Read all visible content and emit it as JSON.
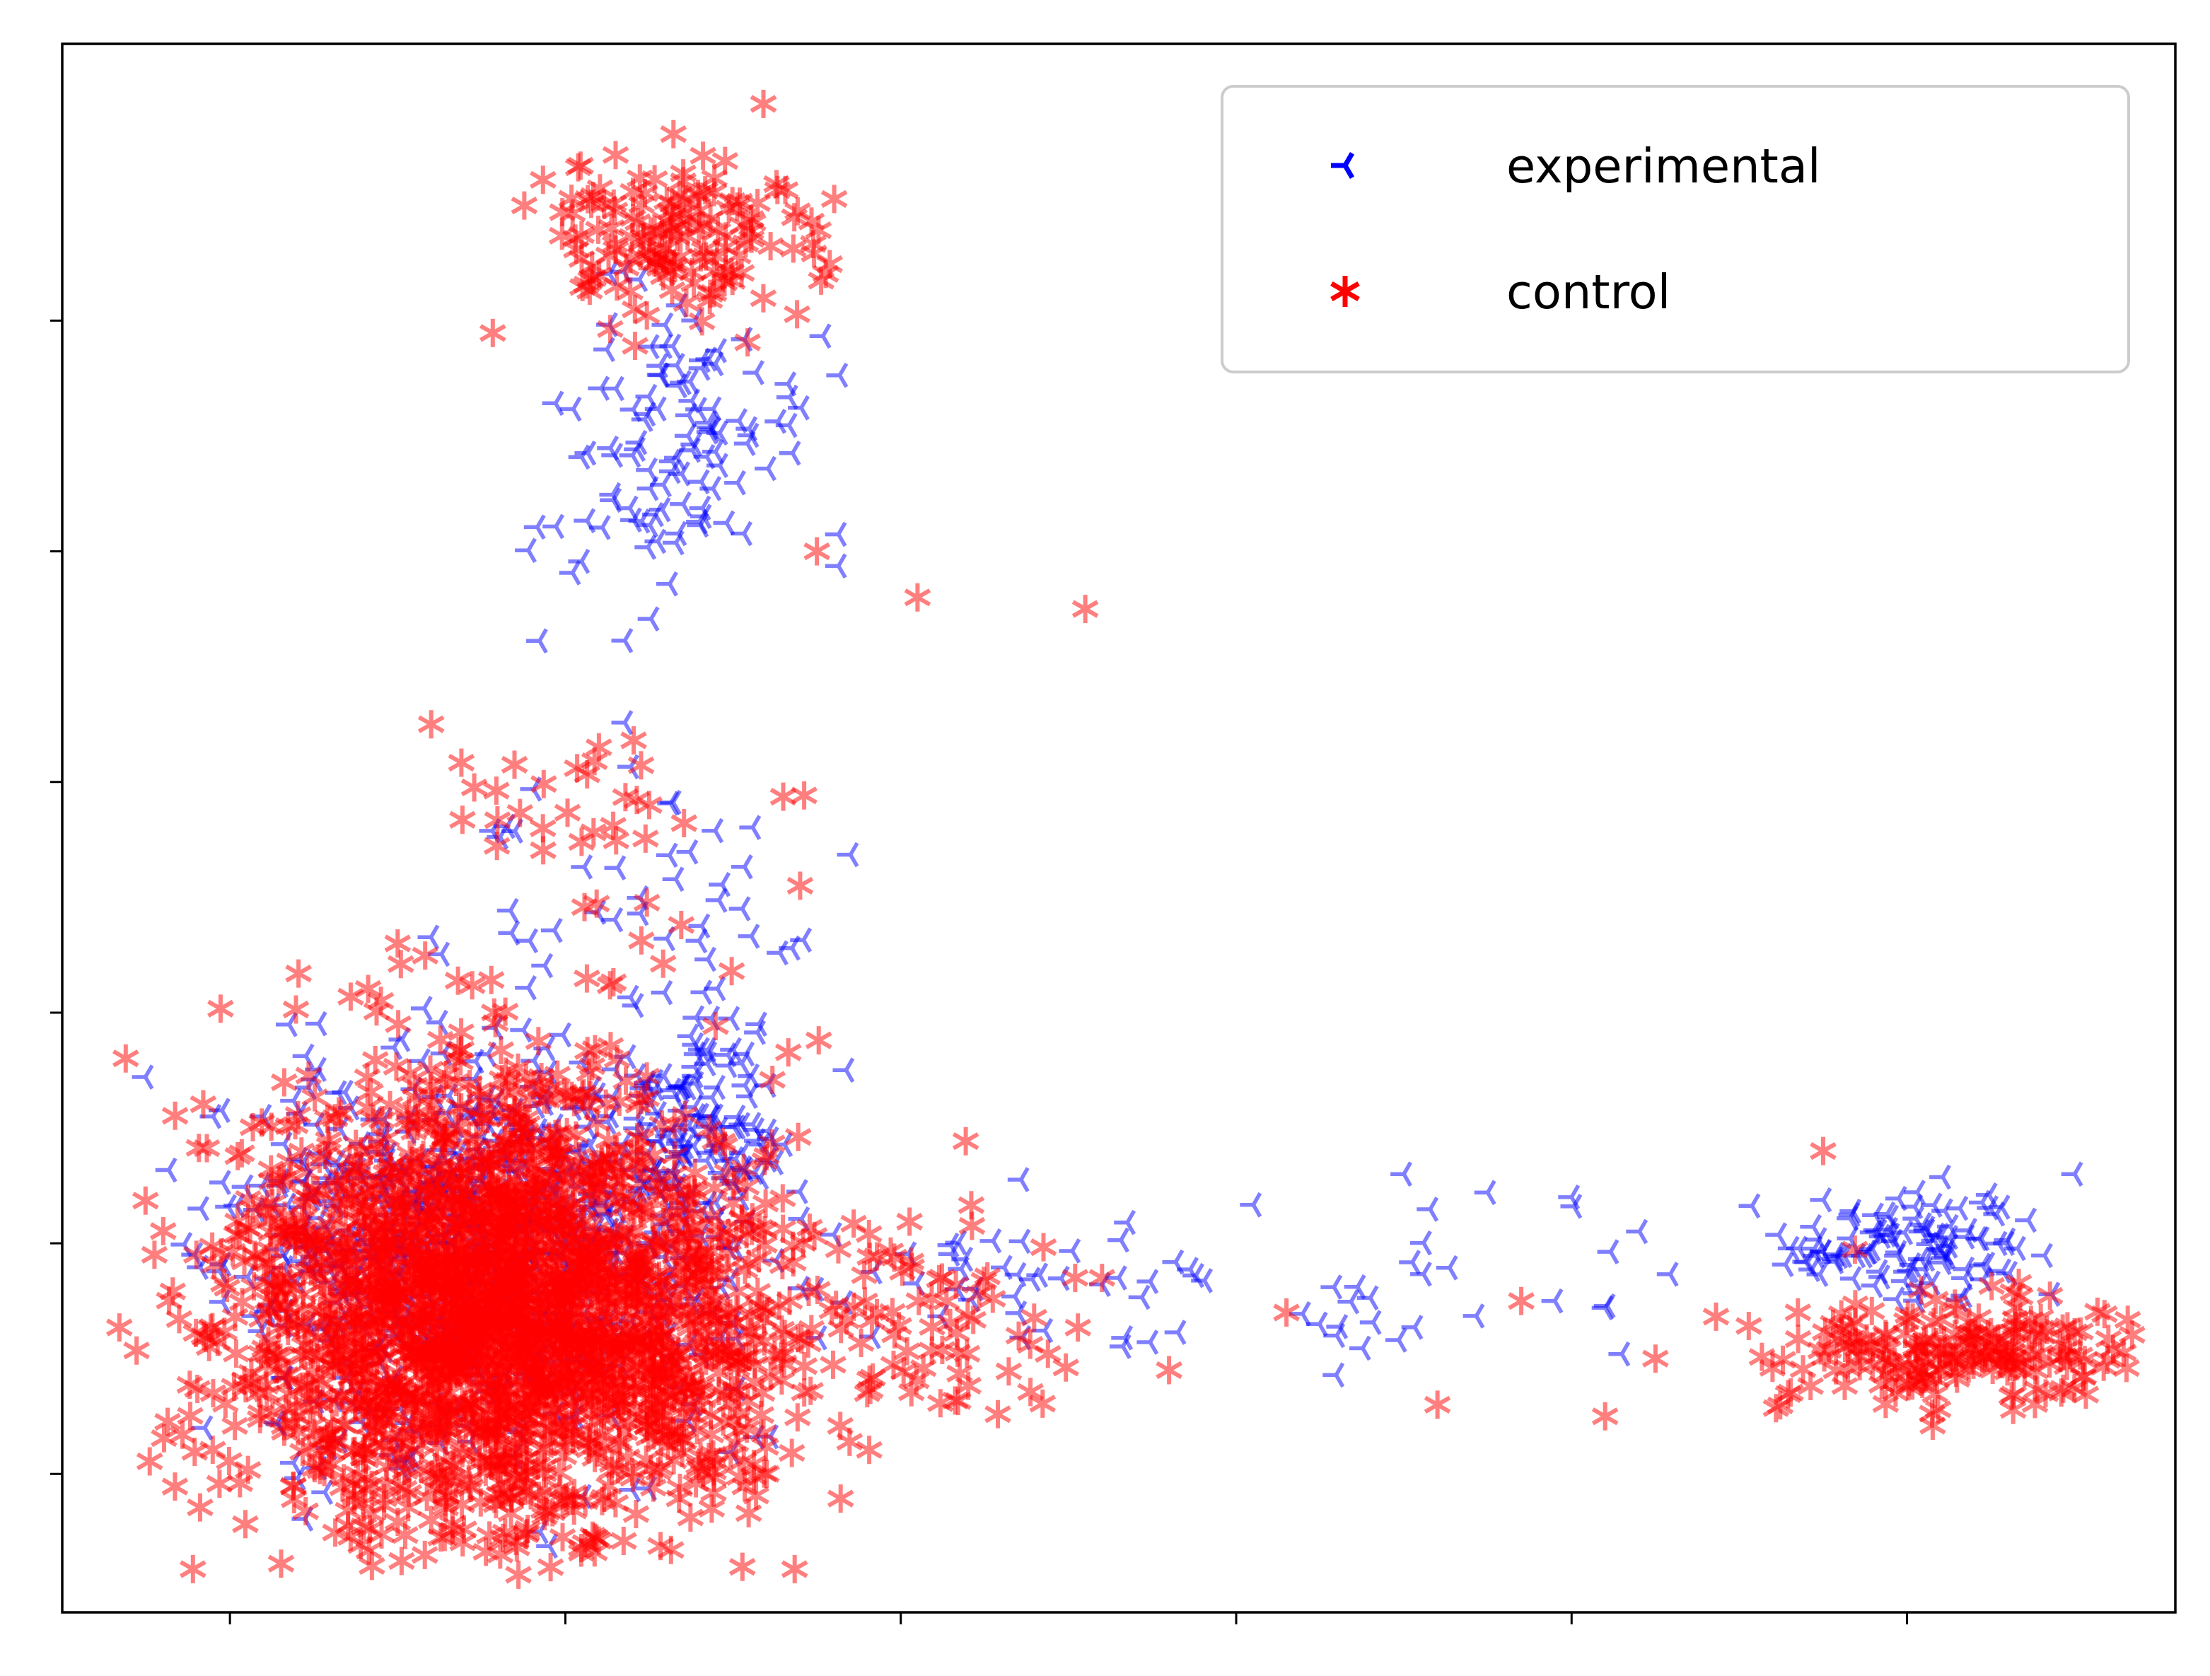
{
  "chart_data": {
    "type": "scatter",
    "title": "",
    "xlabel": "",
    "ylabel": "",
    "xlim": [
      0,
      12.6
    ],
    "ylim": [
      -0.6,
      6.2
    ],
    "x_ticks": [
      1,
      3,
      5,
      7,
      9,
      11
    ],
    "y_ticks": [
      0,
      1,
      2,
      3,
      4,
      5
    ],
    "tick_labels_visible": false,
    "grid": false,
    "legend": {
      "position": "top-right",
      "entries": [
        "experimental",
        "control"
      ]
    },
    "series": [
      {
        "name": "experimental",
        "marker": "tri_left",
        "color": "#0000ff",
        "alpha": 0.5,
        "clusters": [
          {
            "cx": 2.5,
            "cy": 1.0,
            "sx": 0.75,
            "sy": 0.42,
            "n": 700,
            "seed": 11
          },
          {
            "cx": 3.8,
            "cy": 1.55,
            "sx": 0.22,
            "sy": 0.18,
            "n": 90,
            "seed": 12
          },
          {
            "cx": 3.55,
            "cy": 4.5,
            "sx": 0.42,
            "sy": 0.32,
            "n": 110,
            "seed": 13
          },
          {
            "cx": 3.5,
            "cy": 2.45,
            "sx": 0.55,
            "sy": 0.35,
            "n": 45,
            "seed": 14
          },
          {
            "cx": 5.6,
            "cy": 0.85,
            "sx": 0.55,
            "sy": 0.2,
            "n": 35,
            "seed": 15
          },
          {
            "cx": 7.9,
            "cy": 0.8,
            "sx": 0.9,
            "sy": 0.2,
            "n": 30,
            "seed": 16
          },
          {
            "cx": 11.0,
            "cy": 0.98,
            "sx": 0.38,
            "sy": 0.15,
            "n": 110,
            "seed": 17
          }
        ],
        "points": [
          [
            0.9,
            1.55
          ],
          [
            1.2,
            1.55
          ],
          [
            1.3,
            1.25
          ],
          [
            0.85,
            0.2
          ],
          [
            2.85,
            -0.25
          ],
          [
            8.0,
            1.3
          ],
          [
            8.5,
            1.22
          ],
          [
            9.0,
            1.2
          ],
          [
            12.0,
            1.3
          ],
          [
            6.3,
            0.85
          ],
          [
            7.6,
            0.6
          ],
          [
            8.9,
            0.75
          ],
          [
            9.2,
            0.72
          ],
          [
            9.3,
            0.52
          ]
        ]
      },
      {
        "name": "control",
        "marker": "star",
        "color": "#ff0000",
        "alpha": 0.5,
        "clusters": [
          {
            "cx": 2.5,
            "cy": 0.75,
            "sx": 0.75,
            "sy": 0.5,
            "n": 2200,
            "seed": 21
          },
          {
            "cx": 3.6,
            "cy": 0.6,
            "sx": 0.55,
            "sy": 0.3,
            "n": 250,
            "seed": 22
          },
          {
            "cx": 3.65,
            "cy": 5.35,
            "sx": 0.42,
            "sy": 0.18,
            "n": 150,
            "seed": 23
          },
          {
            "cx": 5.2,
            "cy": 0.65,
            "sx": 0.45,
            "sy": 0.25,
            "n": 60,
            "seed": 24
          },
          {
            "cx": 11.3,
            "cy": 0.52,
            "sx": 0.55,
            "sy": 0.12,
            "n": 200,
            "seed": 25
          },
          {
            "cx": 3.2,
            "cy": 2.8,
            "sx": 0.55,
            "sy": 0.25,
            "n": 30,
            "seed": 26
          }
        ],
        "points": [
          [
            0.55,
            0.95
          ],
          [
            0.9,
            0.35
          ],
          [
            0.8,
            0.95
          ],
          [
            2.0,
            2.3
          ],
          [
            2.2,
            3.25
          ],
          [
            3.2,
            3.15
          ],
          [
            3.5,
            2.9
          ],
          [
            4.5,
            4.0
          ],
          [
            5.1,
            3.8
          ],
          [
            6.1,
            3.75
          ],
          [
            4.4,
            2.55
          ],
          [
            4.8,
            0.35
          ],
          [
            6.2,
            0.85
          ],
          [
            6.6,
            0.45
          ],
          [
            7.3,
            0.7
          ],
          [
            8.2,
            0.3
          ],
          [
            8.7,
            0.75
          ],
          [
            9.2,
            0.25
          ],
          [
            9.5,
            0.5
          ],
          [
            10.5,
            1.4
          ],
          [
            4.2,
            0.0
          ],
          [
            3.9,
            0.05
          ],
          [
            2.2,
            -0.2
          ]
        ]
      }
    ]
  }
}
